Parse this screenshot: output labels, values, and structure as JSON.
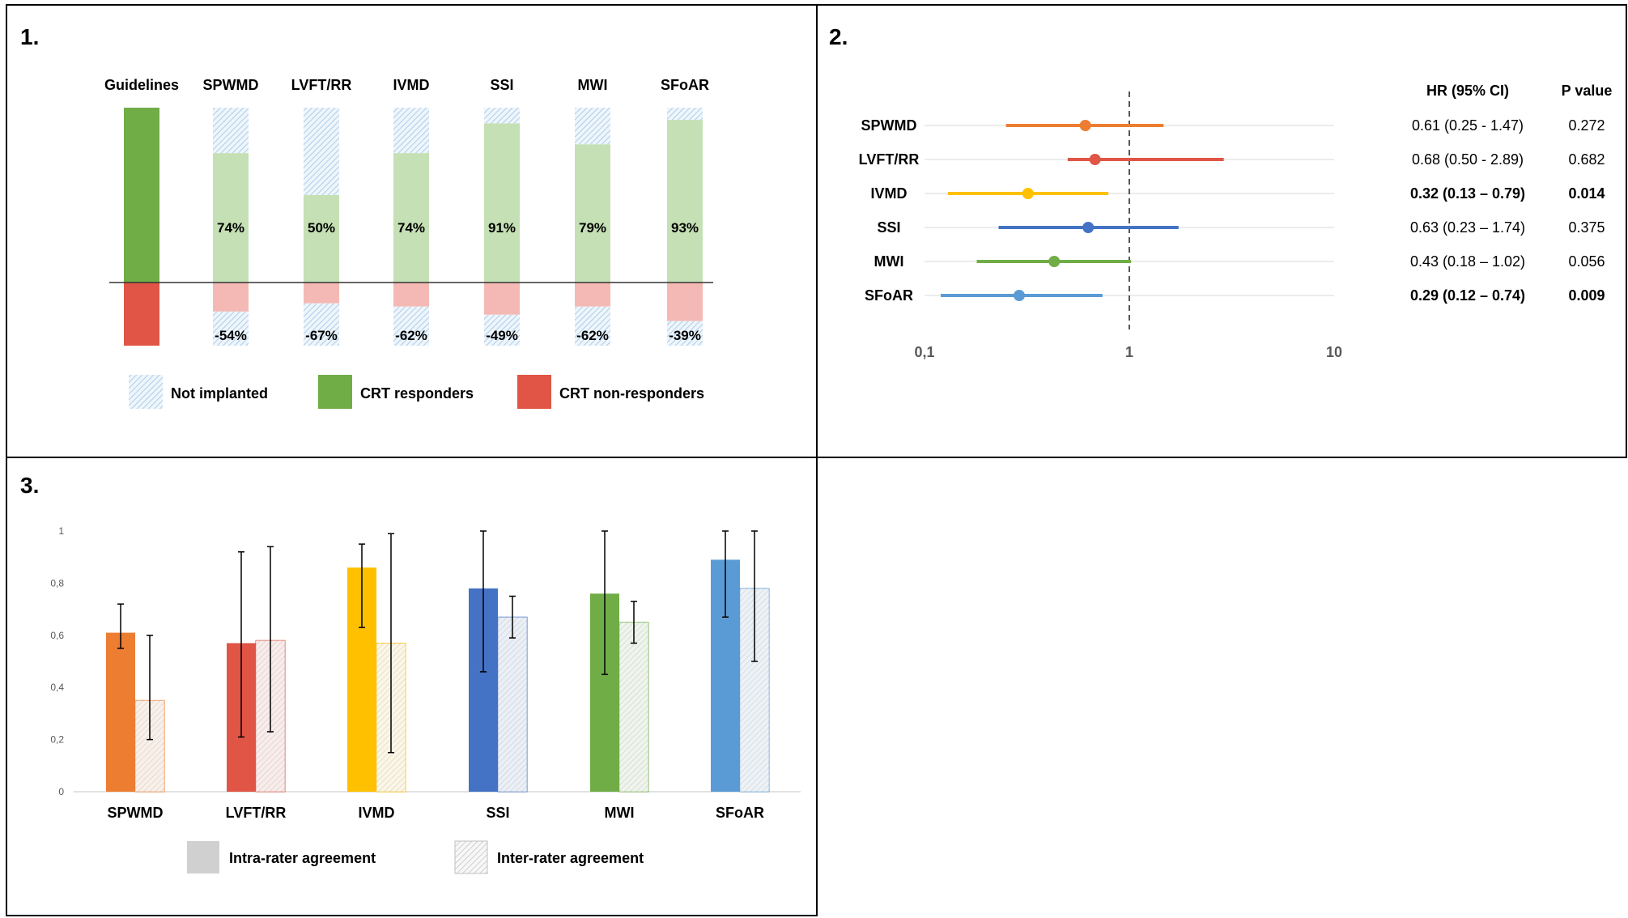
{
  "panel1": {
    "label": "1.",
    "columns": [
      "Guidelines",
      "SPWMD",
      "LVFT/RR",
      "IVMD",
      "SSI",
      "MWI",
      "SFoAR"
    ],
    "chart_data": {
      "type": "bar",
      "categories": [
        "SPWMD",
        "LVFT/RR",
        "IVMD",
        "SSI",
        "MWI",
        "SFoAR"
      ],
      "series": [
        {
          "values": [
            74,
            50,
            74,
            91,
            79,
            93
          ]
        },
        {
          "values": [
            -54,
            -67,
            -62,
            -49,
            -62,
            -39
          ]
        }
      ],
      "value_labels_pos": [
        "74%",
        "50%",
        "74%",
        "91%",
        "79%",
        "93%"
      ],
      "value_labels_neg": [
        "-54%",
        "-67%",
        "-62%",
        "-49%",
        "-62%",
        "-39%"
      ]
    },
    "legend": [
      {
        "label": "Not implanted",
        "kind": "hatch"
      },
      {
        "label": "CRT responders",
        "kind": "green"
      },
      {
        "label": "CRT non-responders",
        "kind": "red"
      }
    ],
    "colors": {
      "green": "#70ad47",
      "light_green": "#c5e0b4",
      "red": "#e05545",
      "light_red": "#f4b9b4",
      "hatch": "#9dc3e6"
    }
  },
  "panel2": {
    "label": "2.",
    "col_headers": {
      "hr": "HR (95% CI)",
      "p": "P value"
    },
    "x_ticks": [
      "0,1",
      "1",
      "10"
    ],
    "chart_data": {
      "type": "scatter",
      "x_scale": "log",
      "xlim": [
        0.1,
        10
      ],
      "rows": [
        {
          "name": "SPWMD",
          "hr": 0.61,
          "lo": 0.25,
          "hi": 1.47,
          "color": "#ed7d31",
          "hr_text": "0.61 (0.25 - 1.47)",
          "p_text": "0.272",
          "bold": false
        },
        {
          "name": "LVFT/RR",
          "hr": 0.68,
          "lo": 0.5,
          "hi": 2.89,
          "color": "#e05545",
          "hr_text": "0.68 (0.50 - 2.89)",
          "p_text": "0.682",
          "bold": false
        },
        {
          "name": "IVMD",
          "hr": 0.32,
          "lo": 0.13,
          "hi": 0.79,
          "color": "#ffc000",
          "hr_text": "0.32 (0.13 – 0.79)",
          "p_text": "0.014",
          "bold": true
        },
        {
          "name": "SSI",
          "hr": 0.63,
          "lo": 0.23,
          "hi": 1.74,
          "color": "#4472c4",
          "hr_text": "0.63 (0.23 – 1.74)",
          "p_text": "0.375",
          "bold": false
        },
        {
          "name": "MWI",
          "hr": 0.43,
          "lo": 0.18,
          "hi": 1.02,
          "color": "#70ad47",
          "hr_text": "0.43 (0.18 – 1.02)",
          "p_text": "0.056",
          "bold": false
        },
        {
          "name": "SFoAR",
          "hr": 0.29,
          "lo": 0.12,
          "hi": 0.74,
          "color": "#5b9bd5",
          "hr_text": "0.29 (0.12 – 0.74)",
          "p_text": "0.009",
          "bold": true
        }
      ]
    }
  },
  "panel3": {
    "label": "3.",
    "y_ticks": [
      "0",
      "0,2",
      "0,4",
      "0,6",
      "0,8",
      "1"
    ],
    "legend": [
      {
        "label": "Intra-rater agreement",
        "kind": "solid"
      },
      {
        "label": "Inter-rater agreement",
        "kind": "hatch"
      }
    ],
    "chart_data": {
      "type": "bar",
      "categories": [
        "SPWMD",
        "LVFT/RR",
        "IVMD",
        "SSI",
        "MWI",
        "SFoAR"
      ],
      "ylim": [
        0,
        1
      ],
      "colors": [
        "#ed7d31",
        "#e05545",
        "#ffc000",
        "#4472c4",
        "#70ad47",
        "#5b9bd5"
      ],
      "series": [
        {
          "name": "Intra-rater agreement",
          "values": [
            0.61,
            0.57,
            0.86,
            0.78,
            0.76,
            0.89
          ],
          "err_low": [
            0.55,
            0.21,
            0.63,
            0.46,
            0.45,
            0.67
          ],
          "err_high": [
            0.72,
            0.92,
            0.95,
            1.0,
            1.0,
            1.0
          ]
        },
        {
          "name": "Inter-rater agreement",
          "values": [
            0.35,
            0.58,
            0.57,
            0.67,
            0.65,
            0.78
          ],
          "err_low": [
            0.2,
            0.23,
            0.15,
            0.59,
            0.57,
            0.5
          ],
          "err_high": [
            0.6,
            0.94,
            0.99,
            0.75,
            0.73,
            1.0
          ]
        }
      ]
    }
  }
}
